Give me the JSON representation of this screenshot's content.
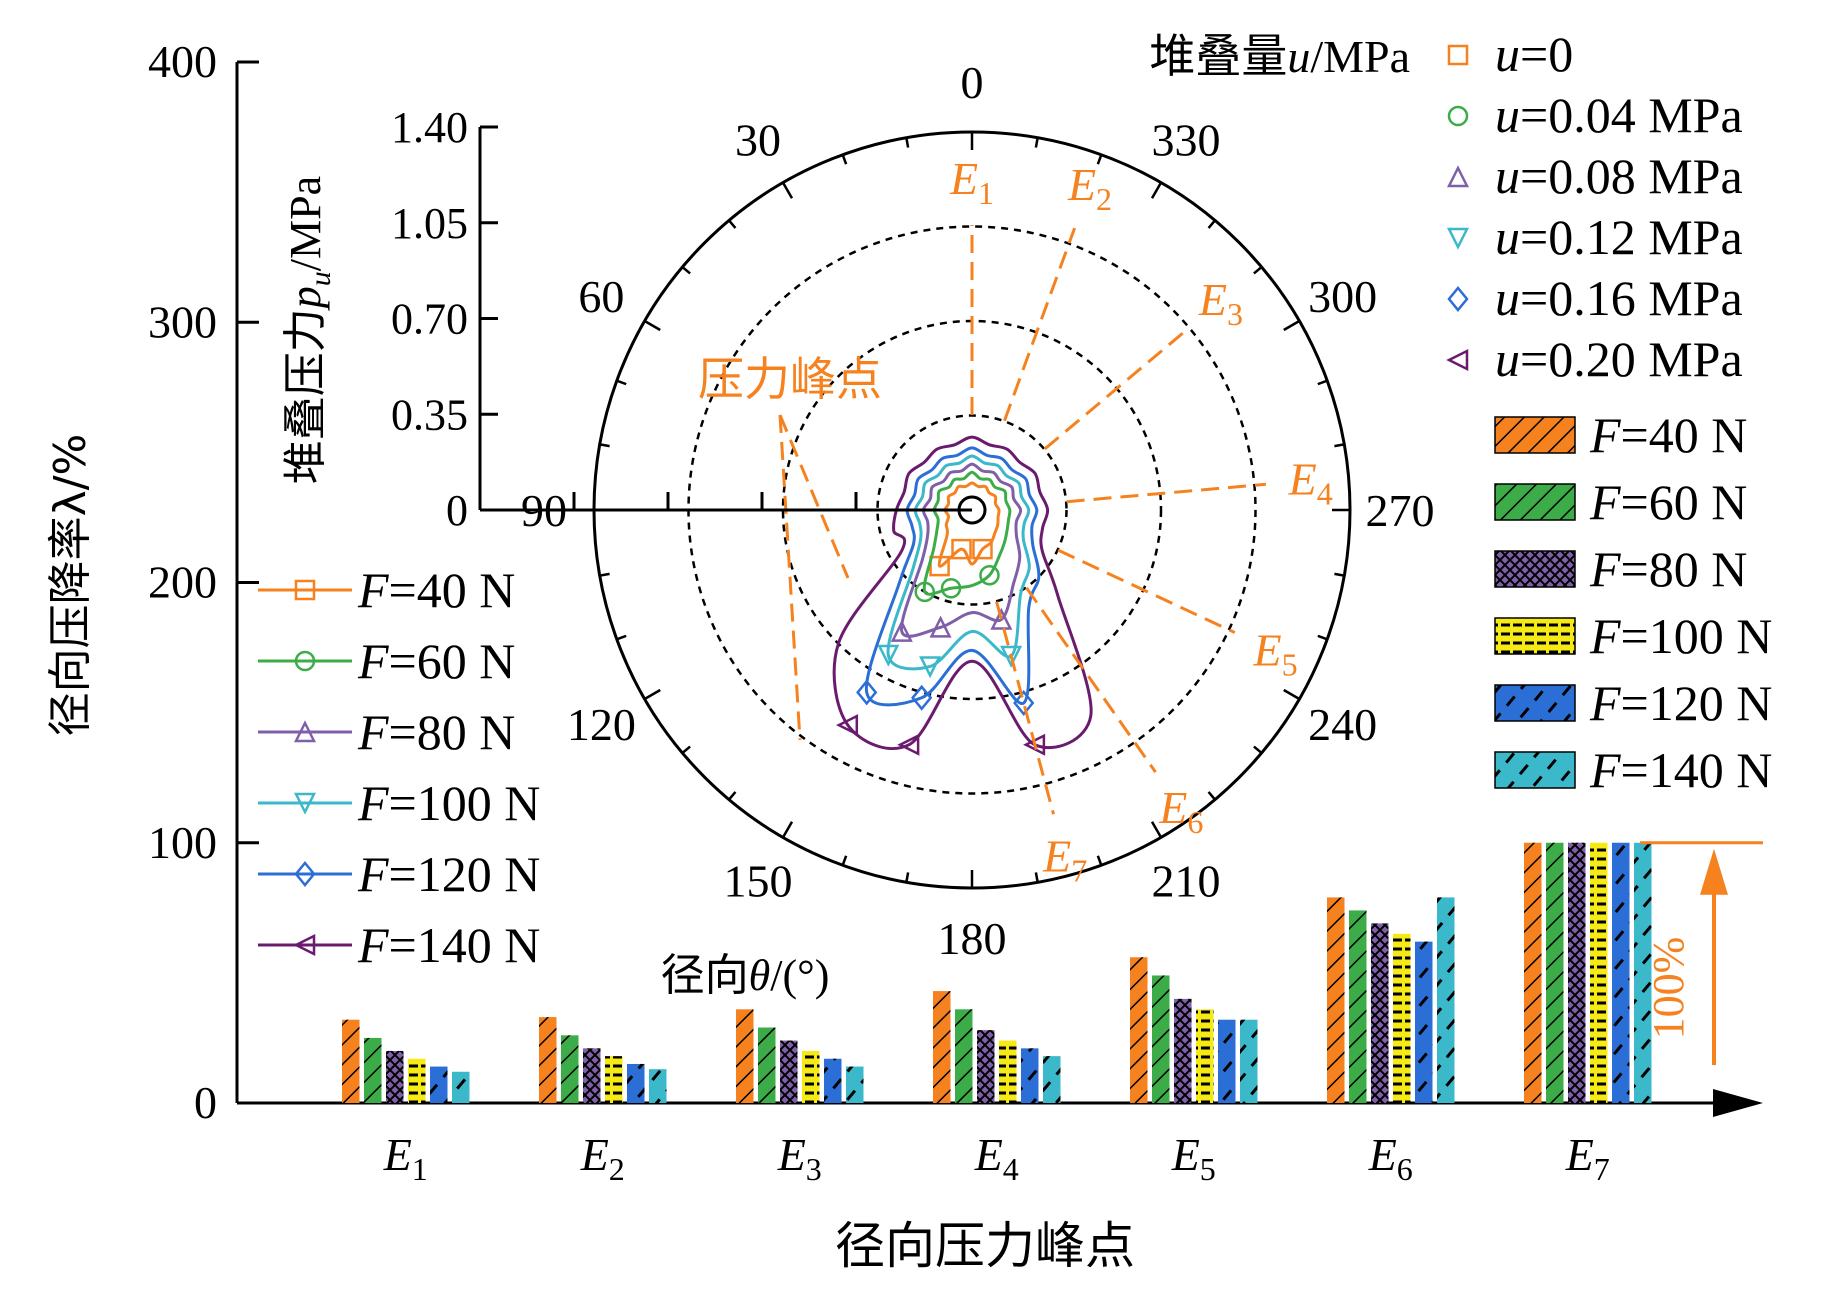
{
  "chart_data": [
    {
      "type": "bar",
      "title": "",
      "xlabel": "径向压力峰点",
      "ylabel": "径向压降率λ/%",
      "ylim": [
        0,
        400
      ],
      "yticks": [
        "0",
        "100",
        "200",
        "300",
        "400"
      ],
      "grid": false,
      "categories": [
        "E1",
        "E2",
        "E3",
        "E4",
        "E5",
        "E6",
        "E7"
      ],
      "category_base": "E",
      "category_subs": [
        "1",
        "2",
        "3",
        "4",
        "5",
        "6",
        "7"
      ],
      "annotation": "100%",
      "legend_position": "right",
      "series": [
        {
          "name": "F=40 N",
          "force": "40",
          "color": "#f5821f",
          "values": [
            32,
            33,
            36,
            43,
            56,
            79,
            100
          ]
        },
        {
          "name": "F=60 N",
          "force": "60",
          "color": "#3cac48",
          "values": [
            25,
            26,
            29,
            36,
            49,
            74,
            100
          ]
        },
        {
          "name": "F=80 N",
          "force": "80",
          "color": "#7f5fa8",
          "values": [
            20,
            21,
            24,
            28,
            40,
            69,
            100
          ]
        },
        {
          "name": "F=100 N",
          "force": "100",
          "color": "#f5ea14",
          "values": [
            17,
            18,
            20,
            24,
            36,
            65,
            100
          ]
        },
        {
          "name": "F=120 N",
          "force": "120",
          "color": "#2b6fd6",
          "values": [
            14,
            15,
            17,
            21,
            32,
            62,
            100
          ]
        },
        {
          "name": "F=140 N",
          "force": "140",
          "color": "#3bb8c9",
          "values": [
            12,
            13,
            14,
            18,
            32,
            79,
            100
          ]
        }
      ]
    },
    {
      "type": "polar-line",
      "title": "",
      "radial_axis_label": "堆叠压力p_u/MPa",
      "radial_label_base": "堆叠压力",
      "radial_label_var": "p",
      "radial_label_sub": "u",
      "radial_label_unit": "/MPa",
      "radial_range": [
        0,
        1.4
      ],
      "radial_ticks": [
        "0",
        "0.35",
        "0.70",
        "1.05",
        "1.40"
      ],
      "angle_label": "径向θ/(°)",
      "angle_label_base": "径向",
      "angle_label_var": "θ",
      "angle_label_unit": "/(°)",
      "angle_ticks": [
        "0",
        "30",
        "60",
        "90",
        "120",
        "150",
        "180",
        "210",
        "240",
        "270",
        "300",
        "330"
      ],
      "peak_label": "压力峰点",
      "peak_names": [
        "E1",
        "E2",
        "E3",
        "E4",
        "E5",
        "E6",
        "E7"
      ],
      "u_legend_title": "堆叠量u/MPa",
      "u_legend": [
        {
          "label": "u=0",
          "var": "u",
          "value": "=0",
          "color": "#f5821f",
          "marker": "square"
        },
        {
          "label": "u=0.04 MPa",
          "var": "u",
          "value": "=0.04 MPa",
          "color": "#3cac48",
          "marker": "circle"
        },
        {
          "label": "u=0.08 MPa",
          "var": "u",
          "value": "=0.08 MPa",
          "color": "#7f5fa8",
          "marker": "triangle-up"
        },
        {
          "label": "u=0.12 MPa",
          "var": "u",
          "value": "=0.12 MPa",
          "color": "#3bb8c9",
          "marker": "triangle-down"
        },
        {
          "label": "u=0.16 MPa",
          "var": "u",
          "value": "=0.16 MPa",
          "color": "#2b6fd6",
          "marker": "diamond"
        },
        {
          "label": "u=0.20 MPa",
          "var": "u",
          "value": "=0.20 MPa",
          "color": "#6a1b6e",
          "marker": "triangle-left"
        }
      ],
      "series": [
        {
          "name": "F=40 N",
          "force": "40",
          "color": "#f5821f",
          "marker": "square",
          "angles": [
            0,
            15,
            30,
            45,
            60,
            75,
            90,
            105,
            120,
            135,
            150,
            165,
            180,
            195,
            210,
            225,
            240,
            255,
            270,
            285,
            300,
            315,
            330,
            345
          ],
          "values": [
            0.1,
            0.09,
            0.1,
            0.09,
            0.1,
            0.09,
            0.1,
            0.09,
            0.11,
            0.13,
            0.24,
            0.15,
            0.2,
            0.15,
            0.14,
            0.12,
            0.11,
            0.1,
            0.1,
            0.09,
            0.1,
            0.09,
            0.1,
            0.09
          ]
        },
        {
          "name": "F=60 N",
          "force": "60",
          "color": "#3cac48",
          "marker": "circle",
          "angles": [
            0,
            15,
            30,
            45,
            60,
            75,
            90,
            105,
            120,
            135,
            150,
            165,
            180,
            195,
            210,
            225,
            240,
            255,
            270,
            285,
            300,
            315,
            330,
            345
          ],
          "values": [
            0.14,
            0.12,
            0.13,
            0.12,
            0.14,
            0.13,
            0.14,
            0.13,
            0.15,
            0.2,
            0.35,
            0.3,
            0.28,
            0.25,
            0.2,
            0.17,
            0.15,
            0.14,
            0.14,
            0.13,
            0.14,
            0.12,
            0.13,
            0.12
          ]
        },
        {
          "name": "F=80 N",
          "force": "80",
          "color": "#7f5fa8",
          "marker": "triangle-up",
          "angles": [
            0,
            15,
            30,
            45,
            60,
            75,
            90,
            105,
            120,
            135,
            150,
            165,
            180,
            195,
            210,
            225,
            240,
            255,
            270,
            285,
            300,
            315,
            330,
            345
          ],
          "values": [
            0.17,
            0.15,
            0.16,
            0.15,
            0.17,
            0.16,
            0.18,
            0.17,
            0.19,
            0.26,
            0.52,
            0.45,
            0.38,
            0.42,
            0.31,
            0.25,
            0.19,
            0.17,
            0.18,
            0.16,
            0.17,
            0.15,
            0.16,
            0.15
          ]
        },
        {
          "name": "F=100 N",
          "force": "100",
          "color": "#3bb8c9",
          "marker": "triangle-down",
          "angles": [
            0,
            15,
            30,
            45,
            60,
            75,
            90,
            105,
            120,
            135,
            150,
            165,
            180,
            195,
            210,
            225,
            240,
            255,
            270,
            285,
            300,
            315,
            330,
            345
          ],
          "values": [
            0.2,
            0.18,
            0.19,
            0.18,
            0.2,
            0.19,
            0.21,
            0.2,
            0.22,
            0.31,
            0.62,
            0.6,
            0.45,
            0.56,
            0.36,
            0.3,
            0.22,
            0.2,
            0.21,
            0.19,
            0.2,
            0.18,
            0.19,
            0.18
          ]
        },
        {
          "name": "F=120 N",
          "force": "120",
          "color": "#2b6fd6",
          "marker": "diamond",
          "angles": [
            0,
            15,
            30,
            45,
            60,
            75,
            90,
            105,
            120,
            135,
            150,
            165,
            180,
            195,
            210,
            225,
            240,
            255,
            270,
            285,
            300,
            315,
            330,
            345
          ],
          "values": [
            0.23,
            0.21,
            0.22,
            0.21,
            0.23,
            0.22,
            0.24,
            0.23,
            0.25,
            0.38,
            0.78,
            0.72,
            0.52,
            0.74,
            0.42,
            0.35,
            0.26,
            0.23,
            0.24,
            0.22,
            0.23,
            0.21,
            0.22,
            0.21
          ]
        },
        {
          "name": "F=140 N",
          "force": "140",
          "color": "#6a1b6e",
          "marker": "triangle-left",
          "angles": [
            0,
            15,
            30,
            45,
            60,
            75,
            90,
            105,
            120,
            135,
            150,
            165,
            180,
            195,
            210,
            225,
            240,
            255,
            270,
            285,
            300,
            315,
            330,
            345
          ],
          "values": [
            0.27,
            0.25,
            0.26,
            0.25,
            0.27,
            0.26,
            0.28,
            0.3,
            0.3,
            0.7,
            0.92,
            0.9,
            0.56,
            0.9,
            0.88,
            0.45,
            0.3,
            0.27,
            0.28,
            0.26,
            0.27,
            0.25,
            0.26,
            0.25
          ]
        }
      ]
    }
  ]
}
